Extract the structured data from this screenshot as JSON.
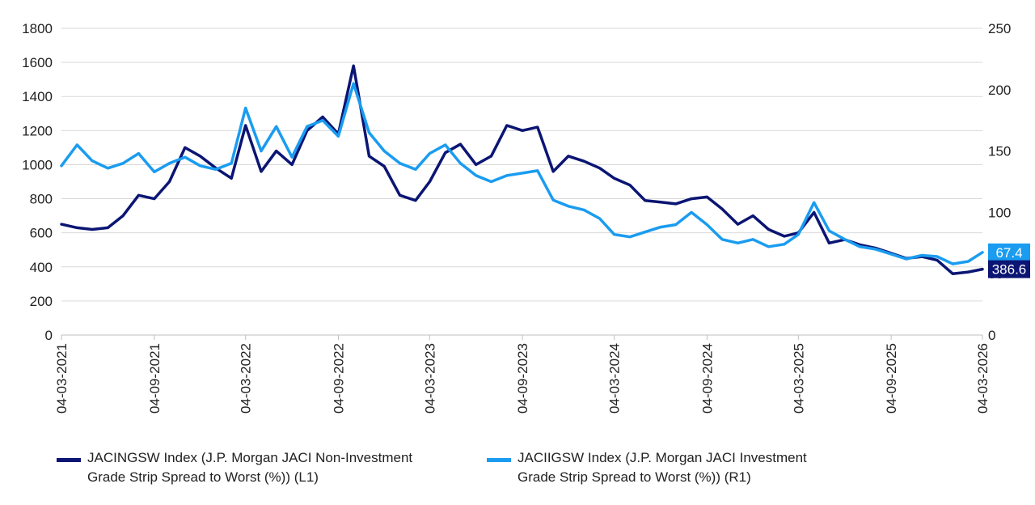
{
  "chart_data": {
    "type": "line",
    "left_axis": {
      "ticks": [
        "0",
        "200",
        "400",
        "600",
        "800",
        "1000",
        "1200",
        "1400",
        "1600",
        "1800"
      ],
      "min": 0,
      "max": 1800
    },
    "right_axis": {
      "ticks": [
        "0",
        "50",
        "100",
        "150",
        "200",
        "250"
      ],
      "min": 0,
      "max": 250
    },
    "grid": true,
    "x_ticks": [
      "04-03-2021",
      "04-09-2021",
      "04-03-2022",
      "04-09-2022",
      "04-03-2023",
      "04-09-2023",
      "04-03-2024",
      "04-09-2024",
      "04-03-2025",
      "04-09-2025",
      "04-03-2026"
    ],
    "series": [
      {
        "name": "JACINGSW Index (J.P. Morgan JACI Non-Investment Grade Strip Spread to Worst (%))  (L1)",
        "axis": "left",
        "color": "#0b1573",
        "last_label": "386.6",
        "points": [
          [
            "04-03-2021",
            650
          ],
          [
            "04-04-2021",
            630
          ],
          [
            "04-05-2021",
            620
          ],
          [
            "04-06-2021",
            630
          ],
          [
            "04-07-2021",
            700
          ],
          [
            "04-08-2021",
            820
          ],
          [
            "04-09-2021",
            800
          ],
          [
            "04-10-2021",
            900
          ],
          [
            "04-11-2021",
            1100
          ],
          [
            "04-12-2021",
            1050
          ],
          [
            "04-01-2022",
            980
          ],
          [
            "04-02-2022",
            920
          ],
          [
            "04-03-2022",
            1230
          ],
          [
            "04-04-2022",
            960
          ],
          [
            "04-05-2022",
            1080
          ],
          [
            "04-06-2022",
            1000
          ],
          [
            "04-07-2022",
            1200
          ],
          [
            "04-08-2022",
            1280
          ],
          [
            "04-09-2022",
            1180
          ],
          [
            "04-10-2022",
            1580
          ],
          [
            "04-11-2022",
            1050
          ],
          [
            "04-12-2022",
            990
          ],
          [
            "04-01-2023",
            820
          ],
          [
            "04-02-2023",
            790
          ],
          [
            "04-03-2023",
            900
          ],
          [
            "04-04-2023",
            1070
          ],
          [
            "04-05-2023",
            1120
          ],
          [
            "04-06-2023",
            1000
          ],
          [
            "04-07-2023",
            1050
          ],
          [
            "04-08-2023",
            1230
          ],
          [
            "04-09-2023",
            1200
          ],
          [
            "04-10-2023",
            1220
          ],
          [
            "04-11-2023",
            960
          ],
          [
            "04-12-2023",
            1050
          ],
          [
            "04-01-2024",
            1020
          ],
          [
            "04-02-2024",
            980
          ],
          [
            "04-03-2024",
            920
          ],
          [
            "04-04-2024",
            880
          ],
          [
            "04-05-2024",
            790
          ],
          [
            "04-06-2024",
            780
          ],
          [
            "04-07-2024",
            770
          ],
          [
            "04-08-2024",
            800
          ],
          [
            "04-09-2024",
            810
          ],
          [
            "04-10-2024",
            740
          ],
          [
            "04-11-2024",
            650
          ],
          [
            "04-12-2024",
            700
          ],
          [
            "04-01-2025",
            620
          ],
          [
            "04-02-2025",
            580
          ],
          [
            "04-03-2025",
            600
          ],
          [
            "04-04-2025",
            720
          ],
          [
            "04-05-2025",
            540
          ],
          [
            "04-06-2025",
            560
          ],
          [
            "04-07-2025",
            530
          ],
          [
            "04-08-2025",
            510
          ],
          [
            "04-09-2025",
            480
          ],
          [
            "04-10-2025",
            450
          ],
          [
            "04-11-2025",
            460
          ],
          [
            "04-12-2025",
            440
          ],
          [
            "04-01-2026",
            360
          ],
          [
            "04-02-2026",
            370
          ],
          [
            "04-03-2026",
            386.6
          ]
        ]
      },
      {
        "name": "JACIIGSW Index (J.P. Morgan JACI Investment Grade Strip Spread to Worst (%))  (R1)",
        "axis": "right",
        "color": "#1a9cf0",
        "last_label": "67.4",
        "points": [
          [
            "04-03-2021",
            138
          ],
          [
            "04-04-2021",
            155
          ],
          [
            "04-05-2021",
            142
          ],
          [
            "04-06-2021",
            136
          ],
          [
            "04-07-2021",
            140
          ],
          [
            "04-08-2021",
            148
          ],
          [
            "04-09-2021",
            133
          ],
          [
            "04-10-2021",
            140
          ],
          [
            "04-11-2021",
            145
          ],
          [
            "04-12-2021",
            138
          ],
          [
            "04-01-2022",
            135
          ],
          [
            "04-02-2022",
            140
          ],
          [
            "04-03-2022",
            185
          ],
          [
            "04-04-2022",
            150
          ],
          [
            "04-05-2022",
            170
          ],
          [
            "04-06-2022",
            145
          ],
          [
            "04-07-2022",
            170
          ],
          [
            "04-08-2022",
            175
          ],
          [
            "04-09-2022",
            162
          ],
          [
            "04-10-2022",
            205
          ],
          [
            "04-11-2022",
            165
          ],
          [
            "04-12-2022",
            150
          ],
          [
            "04-01-2023",
            140
          ],
          [
            "04-02-2023",
            135
          ],
          [
            "04-03-2023",
            148
          ],
          [
            "04-04-2023",
            155
          ],
          [
            "04-05-2023",
            140
          ],
          [
            "04-06-2023",
            130
          ],
          [
            "04-07-2023",
            125
          ],
          [
            "04-08-2023",
            130
          ],
          [
            "04-09-2023",
            132
          ],
          [
            "04-10-2023",
            134
          ],
          [
            "04-11-2023",
            110
          ],
          [
            "04-12-2023",
            105
          ],
          [
            "04-01-2024",
            102
          ],
          [
            "04-02-2024",
            95
          ],
          [
            "04-03-2024",
            82
          ],
          [
            "04-04-2024",
            80
          ],
          [
            "04-05-2024",
            84
          ],
          [
            "04-06-2024",
            88
          ],
          [
            "04-07-2024",
            90
          ],
          [
            "04-08-2024",
            100
          ],
          [
            "04-09-2024",
            90
          ],
          [
            "04-10-2024",
            78
          ],
          [
            "04-11-2024",
            75
          ],
          [
            "04-12-2024",
            78
          ],
          [
            "04-01-2025",
            72
          ],
          [
            "04-02-2025",
            74
          ],
          [
            "04-03-2025",
            82
          ],
          [
            "04-04-2025",
            108
          ],
          [
            "04-05-2025",
            85
          ],
          [
            "04-06-2025",
            78
          ],
          [
            "04-07-2025",
            72
          ],
          [
            "04-08-2025",
            70
          ],
          [
            "04-09-2025",
            66
          ],
          [
            "04-10-2025",
            62
          ],
          [
            "04-11-2025",
            65
          ],
          [
            "04-12-2025",
            64
          ],
          [
            "04-01-2026",
            58
          ],
          [
            "04-02-2026",
            60
          ],
          [
            "04-03-2026",
            67.4
          ]
        ]
      }
    ]
  },
  "legend": {
    "series1_line1": "JACINGSW Index (J.P. Morgan JACI Non-Investment",
    "series1_line2": "Grade Strip Spread to Worst (%))  (L1)",
    "series2_line1": "JACIIGSW Index (J.P. Morgan JACI Investment",
    "series2_line2": "Grade Strip Spread to Worst (%))  (R1)"
  }
}
